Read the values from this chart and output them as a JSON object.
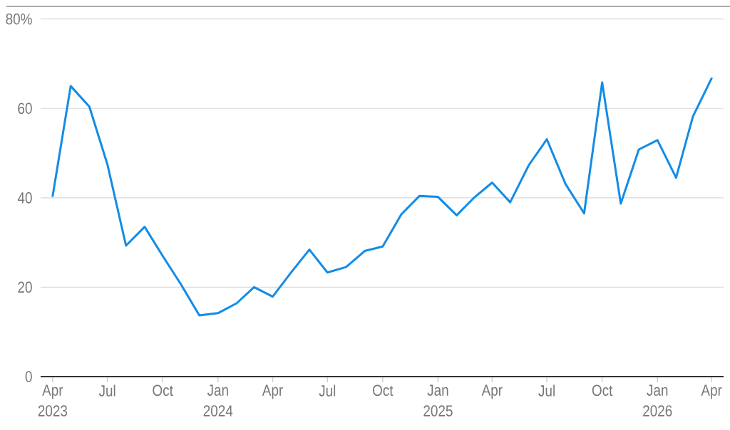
{
  "chart_data": {
    "type": "line",
    "color": "#138ce6",
    "grid": "y",
    "x": [
      "2023-04",
      "2023-05",
      "2023-06",
      "2023-07",
      "2023-08",
      "2023-09",
      "2023-10",
      "2023-11",
      "2023-12",
      "2024-01",
      "2024-02",
      "2024-03",
      "2024-04",
      "2024-05",
      "2024-06",
      "2024-07",
      "2024-08",
      "2024-09",
      "2024-10",
      "2024-11",
      "2024-12",
      "2025-01",
      "2025-02",
      "2025-03",
      "2025-04",
      "2025-05",
      "2025-06",
      "2025-07",
      "2025-08",
      "2025-09",
      "2025-10",
      "2025-11",
      "2025-12",
      "2026-01",
      "2026-02",
      "2026-03",
      "2026-04"
    ],
    "values": [
      40.4,
      65.0,
      60.4,
      47.5,
      29.3,
      33.5,
      27.0,
      20.5,
      13.7,
      14.2,
      16.4,
      20.0,
      17.9,
      23.2,
      28.4,
      23.3,
      24.5,
      28.1,
      29.1,
      36.3,
      40.4,
      40.2,
      36.1,
      39.9,
      43.4,
      39.0,
      47.3,
      53.1,
      43.1,
      36.5,
      65.8,
      38.7,
      50.8,
      52.9,
      44.5,
      58.2,
      66.7
    ],
    "xlim": [
      "2023-03-12",
      "2026-04-21"
    ],
    "ylim": [
      0,
      80
    ],
    "xticks": [
      {
        "value": "2023-04",
        "label": "Apr 2023"
      },
      {
        "value": "2023-07",
        "label": "Jul"
      },
      {
        "value": "2023-10",
        "label": "Oct"
      },
      {
        "value": "2024-01",
        "label": "Jan 2024"
      },
      {
        "value": "2024-04",
        "label": "Apr"
      },
      {
        "value": "2024-07",
        "label": "Jul"
      },
      {
        "value": "2024-10",
        "label": "Oct"
      },
      {
        "value": "2025-01",
        "label": "Jan 2025"
      },
      {
        "value": "2025-04",
        "label": "Apr"
      },
      {
        "value": "2025-07",
        "label": "Jul"
      },
      {
        "value": "2025-10",
        "label": "Oct"
      },
      {
        "value": "2026-01",
        "label": "Jan 2026"
      },
      {
        "value": "2026-04",
        "label": "Apr"
      }
    ],
    "yticks": [
      0,
      20,
      40,
      60,
      {
        "value": 80,
        "label": "80%"
      }
    ]
  }
}
